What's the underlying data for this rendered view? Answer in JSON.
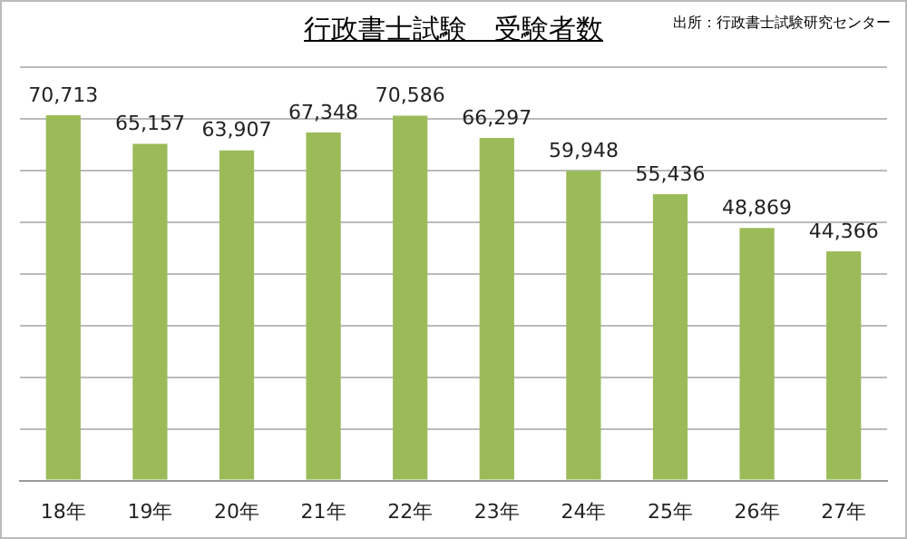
{
  "chart_data": {
    "type": "bar",
    "title": "行政書士試験　受験者数",
    "annotations": [
      "出所：行政書士試験研究センター"
    ],
    "categories": [
      "18年",
      "19年",
      "20年",
      "21年",
      "22年",
      "23年",
      "24年",
      "25年",
      "26年",
      "27年"
    ],
    "values": [
      70713,
      65157,
      63907,
      67348,
      70586,
      66297,
      59948,
      55436,
      48869,
      44366
    ],
    "value_labels": [
      "70,713",
      "65,157",
      "63,907",
      "67,348",
      "70,586",
      "66,297",
      "59,948",
      "55,436",
      "48,869",
      "44,366"
    ],
    "color": "#9bbb59",
    "grid": "y",
    "tick_labels": "x",
    "legend": false
  }
}
